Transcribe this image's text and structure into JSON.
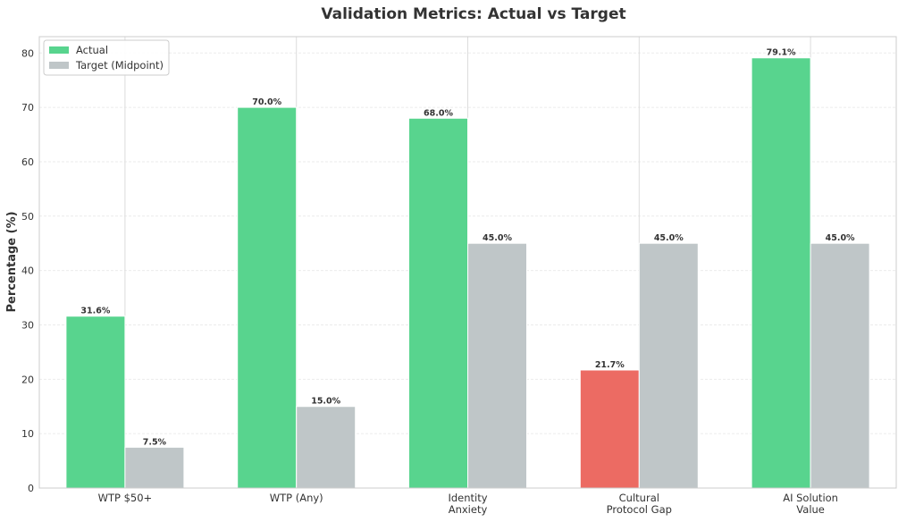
{
  "chart_data": {
    "type": "bar",
    "title": "Validation Metrics: Actual vs Target",
    "xlabel": "",
    "ylabel": "Percentage (%)",
    "ylim": [
      0,
      83
    ],
    "yticks": [
      0,
      10,
      20,
      30,
      40,
      50,
      60,
      70,
      80
    ],
    "grid": true,
    "legend_position": "top-left",
    "categories": [
      [
        "WTP $50+"
      ],
      [
        "WTP (Any)"
      ],
      [
        "Identity",
        "Anxiety"
      ],
      [
        "Cultural",
        "Protocol Gap"
      ],
      [
        "AI Solution",
        "Value"
      ]
    ],
    "series": [
      {
        "name": "Actual",
        "values": [
          31.6,
          70.0,
          68.0,
          21.7,
          79.1
        ],
        "labels": [
          "31.6%",
          "70.0%",
          "68.0%",
          "21.7%",
          "79.1%"
        ],
        "color": "#58d48e",
        "point_colors": [
          "#58d48e",
          "#58d48e",
          "#58d48e",
          "#ec6b63",
          "#58d48e"
        ]
      },
      {
        "name": "Target (Midpoint)",
        "values": [
          7.5,
          15.0,
          45.0,
          45.0,
          45.0
        ],
        "labels": [
          "7.5%",
          "15.0%",
          "45.0%",
          "45.0%",
          "45.0%"
        ],
        "color": "#bfc6c8"
      }
    ]
  }
}
